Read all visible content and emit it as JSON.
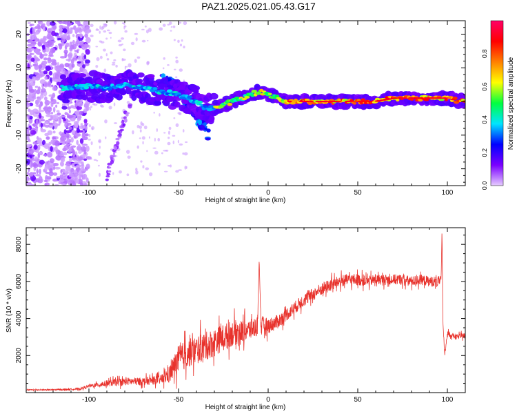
{
  "title": "PAZ1.2025.021.05.43.G17",
  "chart_data": [
    {
      "type": "heatmap",
      "xlabel": "Height of straight line (km)",
      "ylabel": "Frequency (Hz)",
      "xlim": [
        -135,
        110
      ],
      "ylim": [
        -25,
        24
      ],
      "x_ticks": [
        -100,
        -50,
        0,
        50,
        100
      ],
      "y_ticks": [
        20,
        10,
        0,
        -10,
        -20
      ],
      "colorbar": {
        "label": "Normalized spectral amplitude",
        "range": [
          0,
          1
        ],
        "ticks": [
          "0.0",
          "0.2",
          "0.4",
          "0.6",
          "0.8"
        ],
        "colors": [
          "#e6ccff",
          "#7a00ff",
          "#0000ff",
          "#00e5ff",
          "#00ff40",
          "#ffff00",
          "#ff8000",
          "#ff0000",
          "#ff0066"
        ]
      },
      "ridge": {
        "x": [
          -115,
          -100,
          -90,
          -80,
          -70,
          -60,
          -50,
          -40,
          -35,
          -30,
          -25,
          -20,
          -15,
          -10,
          -5,
          0,
          5,
          10,
          20,
          30,
          40,
          50,
          60,
          70,
          80,
          90,
          100,
          108
        ],
        "frequency": [
          4,
          4.5,
          4,
          5,
          4,
          3,
          2,
          0,
          -2,
          -2,
          -1,
          0,
          1,
          2,
          3,
          2,
          1,
          0,
          0,
          0,
          0,
          0,
          0,
          1,
          1,
          1,
          1,
          0
        ]
      },
      "branch": {
        "x": [
          -60,
          -50,
          -45,
          -40,
          -35,
          -33
        ],
        "frequency": [
          6,
          4,
          0,
          -4,
          -8,
          -10
        ]
      }
    },
    {
      "type": "line",
      "xlabel": "Height of straight line (km)",
      "ylabel": "SNR (10 * v/v)",
      "xlim": [
        -135,
        110
      ],
      "ylim": [
        0,
        8900
      ],
      "x_ticks": [
        -100,
        -50,
        0,
        50,
        100
      ],
      "y_ticks": [
        2000,
        4000,
        6000,
        8000
      ],
      "series": [
        {
          "name": "SNR",
          "color": "#e8322c",
          "x": [
            -135,
            -120,
            -105,
            -100,
            -90,
            -80,
            -70,
            -60,
            -55,
            -50,
            -45,
            -40,
            -35,
            -30,
            -25,
            -20,
            -15,
            -10,
            -6,
            -5,
            -4,
            0,
            5,
            10,
            15,
            20,
            25,
            30,
            35,
            40,
            45,
            50,
            55,
            60,
            65,
            70,
            75,
            80,
            85,
            90,
            95,
            96.5,
            97,
            97.5,
            98.5,
            100,
            105,
            110
          ],
          "values": [
            150,
            150,
            200,
            350,
            500,
            600,
            600,
            700,
            1000,
            1800,
            2100,
            2300,
            2500,
            2700,
            3000,
            3200,
            3300,
            3400,
            3600,
            7200,
            3600,
            3600,
            3800,
            4200,
            4600,
            5000,
            5300,
            5600,
            5800,
            6000,
            6100,
            6100,
            6000,
            6100,
            6100,
            6100,
            6100,
            6000,
            6100,
            6000,
            6000,
            6100,
            8800,
            3800,
            2000,
            3200,
            3000,
            3100
          ],
          "noise": [
            40,
            40,
            80,
            120,
            250,
            300,
            300,
            350,
            700,
            1100,
            1100,
            1100,
            1100,
            1100,
            1000,
            1000,
            900,
            800,
            800,
            0,
            800,
            600,
            550,
            500,
            500,
            500,
            500,
            500,
            500,
            450,
            450,
            450,
            400,
            400,
            400,
            400,
            400,
            400,
            400,
            400,
            400,
            300,
            0,
            0,
            250,
            200,
            200,
            200
          ]
        }
      ]
    }
  ]
}
